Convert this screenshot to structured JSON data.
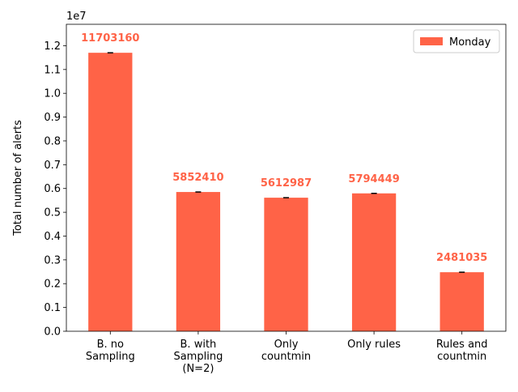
{
  "chart_data": {
    "type": "bar",
    "categories": [
      [
        "B. no",
        "Sampling"
      ],
      [
        "B. with",
        "Sampling",
        "(N=2)"
      ],
      [
        "Only",
        "countmin"
      ],
      [
        "Only rules"
      ],
      [
        "Rules and",
        "countmin"
      ]
    ],
    "series": [
      {
        "name": "Monday",
        "color": "#ff6347",
        "values": [
          11703160,
          5852410,
          5612987,
          5794449,
          2481035
        ]
      }
    ],
    "data_labels": [
      "11703160",
      "5852410",
      "5612987",
      "5794449",
      "2481035"
    ],
    "ylabel": "Total number of alerts",
    "y_offset_text": "1e7",
    "ylim": [
      0,
      12900000
    ],
    "yticks": [
      0,
      0.1,
      0.2,
      0.3,
      0.4,
      0.5,
      0.6,
      0.7,
      0.8,
      0.9,
      1.0,
      1.1,
      1.2
    ],
    "yticklabels": [
      "0.0",
      "0.1",
      "0.2",
      "0.3",
      "0.4",
      "0.5",
      "0.6",
      "0.7",
      "0.8",
      "0.9",
      "1.0",
      "1.1",
      "1.2"
    ],
    "y_scale": 10000000,
    "legend_position": "top-right",
    "error_bars": true,
    "grid": false
  }
}
